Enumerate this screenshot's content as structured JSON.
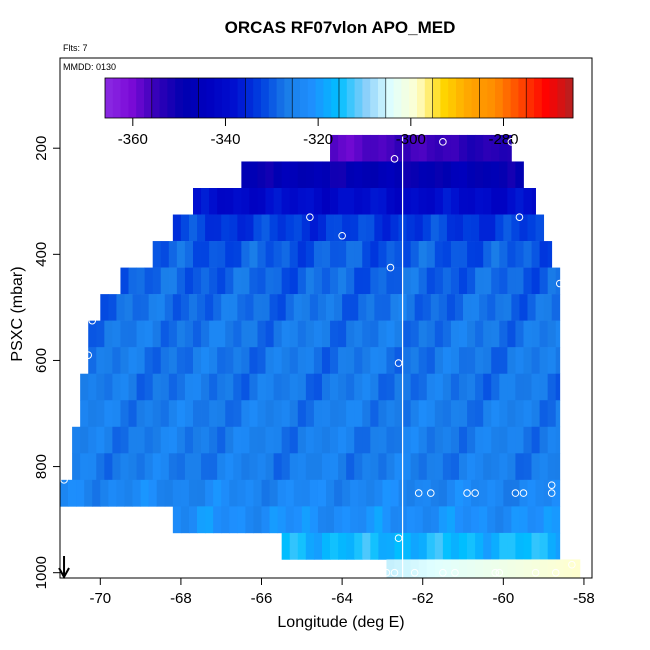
{
  "chart_data": {
    "type": "heatmap",
    "title": "ORCAS RF07vlon APO_MED",
    "subtitle_flights": "Flts: 7",
    "date_label": "MMDD: 0130",
    "xlabel": "Longitude (deg E)",
    "ylabel": "PSXC (mbar)",
    "xlim": [
      -71.0,
      -57.8
    ],
    "ylim": [
      1010,
      30
    ],
    "y_inverted": true,
    "x_ticks": [
      -70,
      -68,
      -66,
      -64,
      -62,
      -60,
      -58
    ],
    "y_ticks": [
      200,
      400,
      600,
      800,
      1000
    ],
    "colorbar": {
      "range": [
        -366,
        -265
      ],
      "ticks": [
        -360,
        -340,
        -320,
        -300,
        -280
      ],
      "colors": [
        "#8a2be2",
        "#7d0bd8",
        "#3300b8",
        "#0000b0",
        "#0000c0",
        "#0010d0",
        "#0040e0",
        "#1a7de8",
        "#1e90ff",
        "#00bfff",
        "#87cefa",
        "#e0ffff",
        "#ffffd0",
        "#ffd700",
        "#ffa500",
        "#ff8c00",
        "#ff4500",
        "#ff0000",
        "#b22222"
      ]
    },
    "vertical_line_lon": -62.5,
    "arrow_lon": -70.9,
    "rows": [
      {
        "p_top": 175,
        "p_bot": 225,
        "lon_start": -64.3,
        "lon_end": -59.8,
        "value": -352
      },
      {
        "p_top": 225,
        "p_bot": 275,
        "lon_start": -66.5,
        "lon_end": -59.5,
        "value": -348
      },
      {
        "p_top": 275,
        "p_bot": 325,
        "lon_start": -67.7,
        "lon_end": -59.2,
        "value": -340
      },
      {
        "p_top": 325,
        "p_bot": 375,
        "lon_start": -68.2,
        "lon_end": -59.0,
        "value": -333
      },
      {
        "p_top": 375,
        "p_bot": 425,
        "lon_start": -68.7,
        "lon_end": -58.8,
        "value": -330
      },
      {
        "p_top": 425,
        "p_bot": 475,
        "lon_start": -69.5,
        "lon_end": -58.6,
        "value": -329
      },
      {
        "p_top": 475,
        "p_bot": 525,
        "lon_start": -70.0,
        "lon_end": -58.6,
        "value": -328
      },
      {
        "p_top": 525,
        "p_bot": 575,
        "lon_start": -70.3,
        "lon_end": -58.6,
        "value": -327
      },
      {
        "p_top": 575,
        "p_bot": 625,
        "lon_start": -70.3,
        "lon_end": -58.6,
        "value": -327
      },
      {
        "p_top": 625,
        "p_bot": 675,
        "lon_start": -70.5,
        "lon_end": -58.6,
        "value": -327
      },
      {
        "p_top": 675,
        "p_bot": 725,
        "lon_start": -70.5,
        "lon_end": -58.6,
        "value": -326
      },
      {
        "p_top": 725,
        "p_bot": 775,
        "lon_start": -70.7,
        "lon_end": -58.6,
        "value": -326
      },
      {
        "p_top": 775,
        "p_bot": 825,
        "lon_start": -70.7,
        "lon_end": -58.6,
        "value": -326
      },
      {
        "p_top": 825,
        "p_bot": 875,
        "lon_start": -71.0,
        "lon_end": -58.6,
        "value": -324
      },
      {
        "p_top": 875,
        "p_bot": 925,
        "lon_start": -68.2,
        "lon_end": -58.6,
        "value": -322
      },
      {
        "p_top": 925,
        "p_bot": 975,
        "lon_start": -65.5,
        "lon_end": -58.6,
        "value": -316
      },
      {
        "p_top": 975,
        "p_bot": 1010,
        "lon_start": -62.9,
        "lon_end": -58.1,
        "value": -298
      }
    ],
    "points": [
      [
        -61.5,
        188
      ],
      [
        -59.8,
        188
      ],
      [
        -62.7,
        220
      ],
      [
        -64.8,
        330
      ],
      [
        -59.6,
        330
      ],
      [
        -64.0,
        365
      ],
      [
        -62.8,
        425
      ],
      [
        -58.6,
        455
      ],
      [
        -70.2,
        525
      ],
      [
        -70.3,
        590
      ],
      [
        -62.6,
        605
      ],
      [
        -70.9,
        825
      ],
      [
        -58.8,
        835
      ],
      [
        -62.1,
        850
      ],
      [
        -61.8,
        850
      ],
      [
        -60.9,
        850
      ],
      [
        -60.7,
        850
      ],
      [
        -59.7,
        850
      ],
      [
        -59.5,
        850
      ],
      [
        -58.8,
        850
      ],
      [
        -62.6,
        935
      ],
      [
        -62.9,
        1000
      ],
      [
        -62.7,
        1000
      ],
      [
        -62.2,
        1000
      ],
      [
        -61.5,
        1000
      ],
      [
        -61.2,
        1000
      ],
      [
        -60.2,
        1000
      ],
      [
        -60.1,
        1000
      ],
      [
        -59.2,
        1000
      ],
      [
        -58.7,
        1000
      ],
      [
        -58.3,
        985
      ]
    ]
  }
}
